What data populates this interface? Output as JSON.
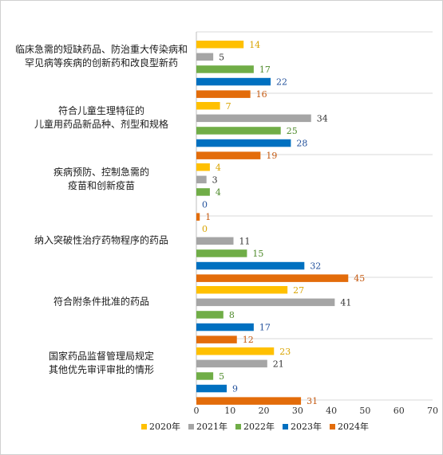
{
  "chart_data": {
    "type": "bar",
    "orientation": "horizontal",
    "title": "",
    "xlabel": "",
    "ylabel": "",
    "xlim": [
      0,
      70
    ],
    "ticks": [
      0,
      10,
      20,
      30,
      40,
      50,
      60,
      70
    ],
    "grid": "horizontal separators between categories",
    "legend_position": "bottom",
    "categories": [
      [
        "临床急需的短缺药品、防治重大传染病和",
        "罕见病等疾病的创新药和改良型新药"
      ],
      [
        "符合儿童生理特征的",
        "儿童用药品新品种、剂型和规格"
      ],
      [
        "疾病预防、控制急需的",
        "疫苗和创新疫苗"
      ],
      [
        "纳入突破性治疗药物程序的药品"
      ],
      [
        "符合附条件批准的药品"
      ],
      [
        "国家药品监督管理局规定",
        "其他优先审评审批的情形"
      ]
    ],
    "series": [
      {
        "name": "2020年",
        "color": "#FFC000",
        "label_color": "#D9A400",
        "values": [
          14,
          7,
          4,
          0,
          27,
          23
        ]
      },
      {
        "name": "2021年",
        "color": "#A5A5A5",
        "label_color": "#333333",
        "values": [
          5,
          34,
          3,
          11,
          41,
          21
        ]
      },
      {
        "name": "2022年",
        "color": "#70AD47",
        "label_color": "#4E8A2A",
        "values": [
          17,
          25,
          4,
          15,
          8,
          5
        ]
      },
      {
        "name": "2023年",
        "color": "#0070C0",
        "label_color": "#1F4E9A",
        "values": [
          22,
          28,
          0,
          32,
          17,
          9
        ]
      },
      {
        "name": "2024年",
        "color": "#E36C0A",
        "label_color": "#C55A11",
        "values": [
          16,
          19,
          1,
          45,
          12,
          31
        ]
      }
    ]
  }
}
